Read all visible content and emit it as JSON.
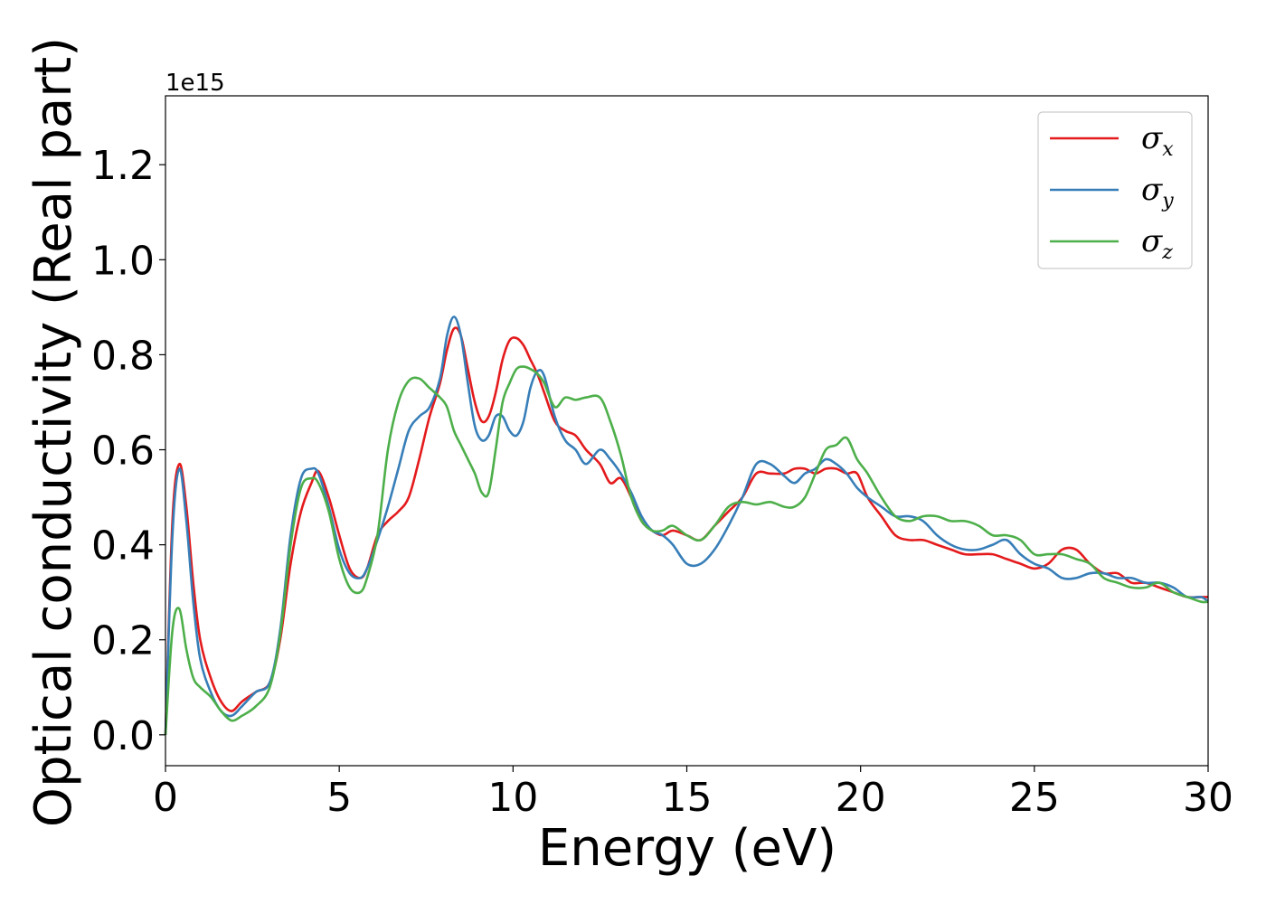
{
  "chart_data": {
    "type": "line",
    "title": "",
    "xlabel": "Energy (eV)",
    "ylabel": "Optical conductivity (Real part)",
    "y_offset_text": "1e15",
    "y_multiplier": 1000000000000000.0,
    "xlim": [
      0,
      30
    ],
    "ylim": [
      -0.065,
      1.345
    ],
    "xticks": [
      0,
      5,
      10,
      15,
      20,
      25,
      30
    ],
    "yticks": [
      0.0,
      0.2,
      0.4,
      0.6,
      0.8,
      1.0,
      1.2
    ],
    "xtick_labels": [
      "0",
      "5",
      "10",
      "15",
      "20",
      "25",
      "30"
    ],
    "ytick_labels": [
      "0.0",
      "0.2",
      "0.4",
      "0.6",
      "0.8",
      "1.0",
      "1.2"
    ],
    "grid": false,
    "legend_position": "top-right",
    "series": [
      {
        "name": "σx",
        "symbol": "σ",
        "subscript": "x",
        "color": "#e41a1c",
        "x": [
          0,
          0.2,
          0.4,
          0.6,
          0.8,
          1.0,
          1.3,
          1.6,
          1.9,
          2.2,
          2.6,
          3.0,
          3.3,
          3.6,
          3.9,
          4.2,
          4.4,
          4.7,
          5.0,
          5.3,
          5.6,
          5.8,
          6.1,
          6.4,
          6.7,
          7.0,
          7.3,
          7.6,
          7.9,
          8.1,
          8.3,
          8.5,
          8.7,
          8.9,
          9.1,
          9.3,
          9.5,
          9.7,
          9.9,
          10.1,
          10.3,
          10.5,
          10.7,
          10.9,
          11.2,
          11.5,
          11.8,
          12.1,
          12.5,
          12.8,
          13.1,
          13.4,
          13.7,
          14.0,
          14.3,
          14.6,
          15.0,
          15.4,
          15.8,
          16.2,
          16.6,
          17.0,
          17.4,
          17.8,
          18.1,
          18.4,
          18.7,
          19.0,
          19.3,
          19.6,
          19.9,
          20.2,
          20.6,
          21.0,
          21.4,
          21.8,
          22.2,
          22.6,
          23.0,
          23.4,
          23.8,
          24.2,
          24.6,
          25.0,
          25.4,
          25.8,
          26.2,
          26.6,
          27.0,
          27.4,
          27.8,
          28.2,
          28.6,
          29.0,
          29.4,
          29.8,
          30.0
        ],
        "y": [
          0.0,
          0.45,
          0.57,
          0.48,
          0.32,
          0.2,
          0.12,
          0.07,
          0.05,
          0.07,
          0.09,
          0.11,
          0.2,
          0.36,
          0.47,
          0.53,
          0.555,
          0.5,
          0.42,
          0.35,
          0.33,
          0.35,
          0.42,
          0.45,
          0.47,
          0.5,
          0.58,
          0.67,
          0.74,
          0.81,
          0.855,
          0.84,
          0.77,
          0.7,
          0.66,
          0.67,
          0.72,
          0.79,
          0.83,
          0.835,
          0.82,
          0.79,
          0.76,
          0.72,
          0.66,
          0.64,
          0.63,
          0.6,
          0.57,
          0.53,
          0.54,
          0.5,
          0.45,
          0.43,
          0.42,
          0.43,
          0.42,
          0.41,
          0.44,
          0.47,
          0.5,
          0.55,
          0.55,
          0.55,
          0.56,
          0.56,
          0.55,
          0.56,
          0.56,
          0.55,
          0.55,
          0.5,
          0.46,
          0.42,
          0.41,
          0.41,
          0.4,
          0.39,
          0.38,
          0.38,
          0.38,
          0.37,
          0.36,
          0.35,
          0.36,
          0.39,
          0.39,
          0.36,
          0.34,
          0.34,
          0.32,
          0.32,
          0.31,
          0.3,
          0.29,
          0.29,
          0.29
        ]
      },
      {
        "name": "σy",
        "symbol": "σ",
        "subscript": "y",
        "color": "#377eb8",
        "x": [
          0,
          0.2,
          0.4,
          0.6,
          0.8,
          1.0,
          1.3,
          1.6,
          1.9,
          2.2,
          2.6,
          3.0,
          3.3,
          3.6,
          3.9,
          4.2,
          4.4,
          4.7,
          5.0,
          5.3,
          5.6,
          5.8,
          6.1,
          6.4,
          6.7,
          7.0,
          7.3,
          7.6,
          7.9,
          8.1,
          8.3,
          8.5,
          8.7,
          8.9,
          9.1,
          9.3,
          9.5,
          9.7,
          9.9,
          10.1,
          10.3,
          10.5,
          10.7,
          10.9,
          11.2,
          11.5,
          11.8,
          12.1,
          12.5,
          12.8,
          13.1,
          13.4,
          13.7,
          14.0,
          14.3,
          14.6,
          15.0,
          15.4,
          15.8,
          16.2,
          16.6,
          17.0,
          17.4,
          17.8,
          18.1,
          18.4,
          18.7,
          19.0,
          19.3,
          19.6,
          19.9,
          20.2,
          20.6,
          21.0,
          21.4,
          21.8,
          22.2,
          22.6,
          23.0,
          23.4,
          23.8,
          24.2,
          24.6,
          25.0,
          25.4,
          25.8,
          26.2,
          26.6,
          27.0,
          27.4,
          27.8,
          28.2,
          28.6,
          29.0,
          29.4,
          29.8,
          30.0
        ],
        "y": [
          0.0,
          0.42,
          0.56,
          0.45,
          0.28,
          0.16,
          0.09,
          0.05,
          0.04,
          0.06,
          0.09,
          0.11,
          0.22,
          0.42,
          0.54,
          0.56,
          0.55,
          0.48,
          0.39,
          0.34,
          0.33,
          0.35,
          0.41,
          0.48,
          0.56,
          0.64,
          0.67,
          0.69,
          0.75,
          0.84,
          0.88,
          0.84,
          0.74,
          0.65,
          0.62,
          0.63,
          0.67,
          0.67,
          0.64,
          0.63,
          0.66,
          0.73,
          0.765,
          0.755,
          0.67,
          0.62,
          0.6,
          0.57,
          0.6,
          0.58,
          0.55,
          0.51,
          0.46,
          0.43,
          0.42,
          0.4,
          0.36,
          0.36,
          0.39,
          0.44,
          0.5,
          0.57,
          0.57,
          0.545,
          0.53,
          0.55,
          0.56,
          0.58,
          0.57,
          0.55,
          0.52,
          0.5,
          0.48,
          0.46,
          0.46,
          0.45,
          0.42,
          0.4,
          0.39,
          0.39,
          0.4,
          0.41,
          0.38,
          0.36,
          0.35,
          0.33,
          0.33,
          0.34,
          0.34,
          0.33,
          0.33,
          0.32,
          0.32,
          0.31,
          0.29,
          0.29,
          0.28
        ]
      },
      {
        "name": "σz",
        "symbol": "σ",
        "subscript": "z",
        "color": "#4daf4a",
        "x": [
          0,
          0.2,
          0.4,
          0.6,
          0.8,
          1.0,
          1.3,
          1.6,
          1.9,
          2.2,
          2.6,
          3.0,
          3.3,
          3.6,
          3.9,
          4.2,
          4.4,
          4.7,
          5.0,
          5.3,
          5.6,
          5.8,
          6.1,
          6.4,
          6.7,
          7.0,
          7.3,
          7.6,
          7.9,
          8.1,
          8.3,
          8.5,
          8.7,
          8.9,
          9.1,
          9.3,
          9.5,
          9.7,
          9.9,
          10.1,
          10.3,
          10.5,
          10.7,
          10.9,
          11.2,
          11.5,
          11.8,
          12.1,
          12.5,
          12.8,
          13.1,
          13.4,
          13.7,
          14.0,
          14.3,
          14.6,
          15.0,
          15.4,
          15.8,
          16.2,
          16.6,
          17.0,
          17.4,
          17.8,
          18.1,
          18.4,
          18.7,
          19.0,
          19.3,
          19.6,
          19.9,
          20.2,
          20.6,
          21.0,
          21.4,
          21.8,
          22.2,
          22.6,
          23.0,
          23.4,
          23.8,
          24.2,
          24.6,
          25.0,
          25.4,
          25.8,
          26.2,
          26.6,
          27.0,
          27.4,
          27.8,
          28.2,
          28.6,
          29.0,
          29.4,
          29.8,
          30.0
        ],
        "y": [
          0.0,
          0.22,
          0.265,
          0.18,
          0.12,
          0.1,
          0.08,
          0.05,
          0.03,
          0.04,
          0.06,
          0.1,
          0.21,
          0.4,
          0.52,
          0.54,
          0.53,
          0.47,
          0.37,
          0.31,
          0.3,
          0.33,
          0.42,
          0.6,
          0.7,
          0.745,
          0.75,
          0.73,
          0.71,
          0.69,
          0.64,
          0.61,
          0.58,
          0.55,
          0.51,
          0.51,
          0.6,
          0.7,
          0.74,
          0.77,
          0.775,
          0.77,
          0.76,
          0.74,
          0.69,
          0.71,
          0.705,
          0.71,
          0.71,
          0.66,
          0.59,
          0.5,
          0.45,
          0.43,
          0.43,
          0.44,
          0.42,
          0.41,
          0.44,
          0.48,
          0.49,
          0.485,
          0.49,
          0.48,
          0.48,
          0.5,
          0.55,
          0.6,
          0.61,
          0.625,
          0.58,
          0.55,
          0.5,
          0.46,
          0.45,
          0.46,
          0.46,
          0.45,
          0.45,
          0.44,
          0.42,
          0.42,
          0.41,
          0.38,
          0.38,
          0.38,
          0.37,
          0.36,
          0.33,
          0.32,
          0.31,
          0.31,
          0.32,
          0.3,
          0.29,
          0.28,
          0.28
        ]
      }
    ]
  }
}
